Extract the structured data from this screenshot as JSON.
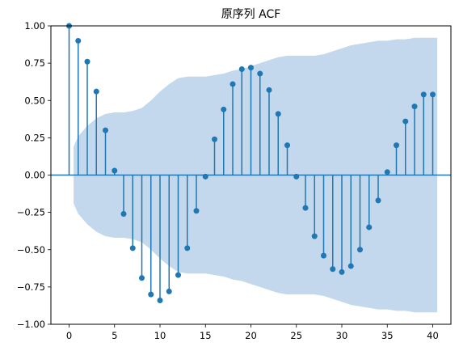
{
  "chart_data": {
    "type": "scatter",
    "title": "原序列 ACF",
    "xlabel": "",
    "ylabel": "",
    "xlim": [
      -2,
      42
    ],
    "ylim": [
      -1.0,
      1.0
    ],
    "x_ticks": [
      0,
      5,
      10,
      15,
      20,
      25,
      30,
      35,
      40
    ],
    "y_ticks": [
      -1.0,
      -0.75,
      -0.5,
      -0.25,
      0.0,
      0.25,
      0.5,
      0.75,
      1.0
    ],
    "x_tick_labels": [
      "0",
      "5",
      "10",
      "15",
      "20",
      "25",
      "30",
      "35",
      "40"
    ],
    "y_tick_labels": [
      "−1.00",
      "−0.75",
      "−0.50",
      "−0.25",
      "0.00",
      "0.25",
      "0.50",
      "0.75",
      "1.00"
    ],
    "grid": false,
    "legend": "none",
    "lags": [
      0,
      1,
      2,
      3,
      4,
      5,
      6,
      7,
      8,
      9,
      10,
      11,
      12,
      13,
      14,
      15,
      16,
      17,
      18,
      19,
      20,
      21,
      22,
      23,
      24,
      25,
      26,
      27,
      28,
      29,
      30,
      31,
      32,
      33,
      34,
      35,
      36,
      37,
      38,
      39,
      40
    ],
    "values": [
      1.0,
      0.9,
      0.76,
      0.56,
      0.3,
      0.03,
      -0.26,
      -0.49,
      -0.69,
      -0.8,
      -0.84,
      -0.78,
      -0.67,
      -0.49,
      -0.24,
      -0.01,
      0.24,
      0.44,
      0.61,
      0.71,
      0.72,
      0.68,
      0.57,
      0.41,
      0.2,
      -0.01,
      -0.22,
      -0.41,
      -0.54,
      -0.63,
      -0.65,
      -0.61,
      -0.5,
      -0.35,
      -0.17,
      0.02,
      0.2,
      0.36,
      0.46,
      0.54,
      0.54
    ],
    "confidence_band": {
      "lags": [
        0.5,
        1,
        2,
        3,
        4,
        5,
        6,
        7,
        8,
        9,
        10,
        11,
        12,
        13,
        14,
        15,
        16,
        17,
        18,
        19,
        20,
        21,
        22,
        23,
        24,
        25,
        26,
        27,
        28,
        29,
        30,
        31,
        32,
        33,
        34,
        35,
        36,
        37,
        38,
        39,
        40.5
      ],
      "upper": [
        0.19,
        0.26,
        0.33,
        0.38,
        0.41,
        0.42,
        0.42,
        0.43,
        0.45,
        0.5,
        0.56,
        0.61,
        0.65,
        0.66,
        0.66,
        0.66,
        0.67,
        0.68,
        0.7,
        0.71,
        0.73,
        0.75,
        0.77,
        0.79,
        0.8,
        0.8,
        0.8,
        0.8,
        0.81,
        0.83,
        0.85,
        0.87,
        0.88,
        0.89,
        0.9,
        0.9,
        0.91,
        0.91,
        0.92,
        0.92,
        0.92
      ]
    },
    "colors": {
      "markers": "#1f77b4",
      "stems": "#1f77b4",
      "zero_line": "#1f77b4",
      "band": "#c3d8ec",
      "axes": "#000000"
    }
  }
}
